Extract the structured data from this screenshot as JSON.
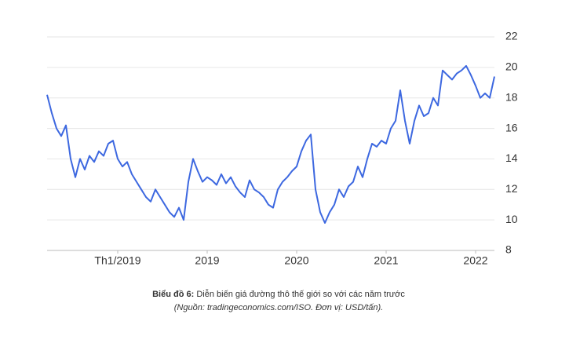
{
  "chart_data": {
    "type": "line",
    "x": [
      0,
      1,
      2,
      3,
      4,
      5,
      6,
      7,
      8,
      9,
      10,
      11,
      12,
      13,
      14,
      15,
      16,
      17,
      18,
      19,
      20,
      21,
      22,
      23,
      24,
      25,
      26,
      27,
      28,
      29,
      30,
      31,
      32,
      33,
      34,
      35,
      36,
      37,
      38,
      39,
      40,
      41,
      42,
      43,
      44,
      45,
      46,
      47,
      48,
      49,
      50,
      51,
      52,
      53,
      54,
      55,
      56,
      57,
      58,
      59,
      60,
      61,
      62,
      63,
      64,
      65,
      66,
      67,
      68,
      69,
      70,
      71,
      72,
      73,
      74,
      75,
      76,
      77,
      78,
      79,
      80,
      81,
      82,
      83,
      84,
      85,
      86,
      87,
      88,
      89,
      90,
      91,
      92,
      93,
      94,
      95
    ],
    "series": [
      {
        "color": "#3d68e0",
        "values": [
          18.2,
          17.0,
          16.0,
          15.5,
          16.2,
          14.0,
          12.8,
          14.0,
          13.3,
          14.2,
          13.8,
          14.5,
          14.2,
          15.0,
          15.2,
          14.0,
          13.5,
          13.8,
          13.0,
          12.5,
          12.0,
          11.5,
          11.2,
          12.0,
          11.5,
          11.0,
          10.5,
          10.2,
          10.8,
          10.0,
          12.5,
          14.0,
          13.2,
          12.5,
          12.8,
          12.6,
          12.3,
          13.0,
          12.4,
          12.8,
          12.2,
          11.8,
          11.5,
          12.6,
          12.0,
          11.8,
          11.5,
          11.0,
          10.8,
          12.0,
          12.5,
          12.8,
          13.2,
          13.5,
          14.5,
          15.2,
          15.6,
          12.0,
          10.5,
          9.8,
          10.5,
          11.0,
          12.0,
          11.5,
          12.2,
          12.5,
          13.5,
          12.8,
          14.0,
          15.0,
          14.8,
          15.2,
          15.0,
          16.0,
          16.5,
          18.5,
          16.5,
          15.0,
          16.5,
          17.5,
          16.8,
          17.0,
          18.0,
          17.5,
          19.8,
          19.5,
          19.2,
          19.6,
          19.8,
          20.1,
          19.5,
          18.8,
          18.0,
          18.3,
          18.0,
          19.4
        ]
      }
    ],
    "xlim": [
      0,
      95
    ],
    "xticks": [
      {
        "value": 15,
        "label": "Th1/2019"
      },
      {
        "value": 34,
        "label": "2019"
      },
      {
        "value": 53,
        "label": "2020"
      },
      {
        "value": 72,
        "label": "2021"
      },
      {
        "value": 91,
        "label": "2022"
      }
    ],
    "ylim": [
      8,
      22
    ],
    "yticks": [
      8,
      10,
      12,
      14,
      16,
      18,
      20,
      22
    ],
    "grid": true,
    "caption": {
      "label": "Biểu đồ 6:",
      "text": " Diễn biến giá đường thô thế giới so với các năm trước",
      "source": "(Nguồn: tradingeconomics.com/ISO. Đơn vị: USD/tấn)."
    }
  }
}
